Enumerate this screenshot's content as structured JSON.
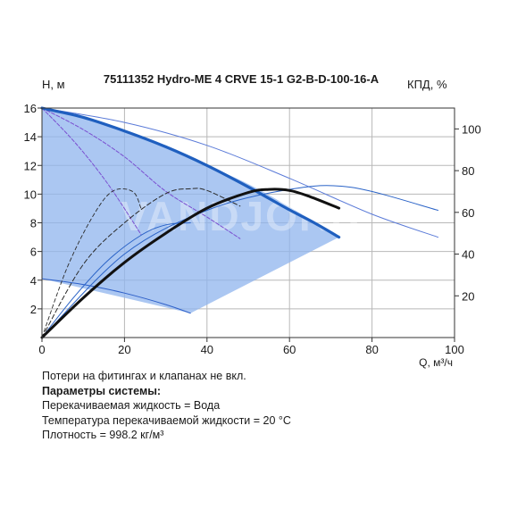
{
  "chart_data": {
    "type": "line",
    "title": "75111352 Hydro-ME 4 CRVE 15-1 G2-B-D-100-16-A",
    "xlabel": "Q, м³/ч",
    "ylabel_left": "H, м",
    "ylabel_right": "КПД, %",
    "xlim": [
      0,
      100
    ],
    "ylim_left": [
      0,
      16
    ],
    "ylim_right": [
      0,
      110
    ],
    "x_ticks": [
      "0",
      "20",
      "40",
      "60",
      "80",
      "100"
    ],
    "y_ticks_left": [
      "2",
      "4",
      "6",
      "8",
      "10",
      "12",
      "14",
      "16"
    ],
    "y_ticks_right": [
      "20",
      "40",
      "60",
      "80",
      "100"
    ],
    "grid": true,
    "watermark": "VANDJORD",
    "operating_area": {
      "top": [
        [
          0,
          16
        ],
        [
          18,
          14.6
        ],
        [
          35,
          12.6
        ],
        [
          50,
          10.7
        ],
        [
          63,
          8.6
        ],
        [
          72,
          7.0
        ]
      ],
      "bottom": [
        [
          36,
          1.7
        ],
        [
          0,
          4.1
        ]
      ]
    },
    "series": [
      {
        "role": "head-max",
        "points": [
          [
            0,
            16
          ],
          [
            10,
            15.35
          ],
          [
            20,
            14.4
          ],
          [
            30,
            13.3
          ],
          [
            40,
            12.0
          ],
          [
            50,
            10.5
          ],
          [
            60,
            8.9
          ],
          [
            66,
            8.0
          ],
          [
            72,
            7.0
          ]
        ]
      },
      {
        "role": "efficiency-max",
        "points": [
          [
            0,
            0
          ],
          [
            10,
            19
          ],
          [
            20,
            36
          ],
          [
            30,
            50
          ],
          [
            40,
            62
          ],
          [
            50,
            69.5
          ],
          [
            55,
            71
          ],
          [
            60,
            70.5
          ],
          [
            65,
            67.5
          ],
          [
            72,
            62
          ]
        ]
      },
      {
        "role": "head-curve-1",
        "points": [
          [
            0,
            16
          ],
          [
            20,
            15.0
          ],
          [
            40,
            13.4
          ],
          [
            60,
            11.1
          ],
          [
            80,
            8.6
          ],
          [
            96,
            7.0
          ]
        ]
      },
      {
        "role": "head-curve-2",
        "points": [
          [
            0,
            16
          ],
          [
            10,
            14.5
          ],
          [
            20,
            12.6
          ],
          [
            30,
            10.2
          ],
          [
            40,
            8.4
          ],
          [
            48,
            6.9
          ]
        ]
      },
      {
        "role": "head-curve-3",
        "points": [
          [
            0,
            16
          ],
          [
            8,
            13.6
          ],
          [
            16,
            10.7
          ],
          [
            24,
            7.2
          ]
        ]
      },
      {
        "role": "head-min",
        "points": [
          [
            0,
            4.1
          ],
          [
            10,
            3.7
          ],
          [
            20,
            3.1
          ],
          [
            30,
            2.3
          ],
          [
            36,
            1.7
          ]
        ]
      },
      {
        "role": "efficiency-1",
        "points": [
          [
            0,
            0
          ],
          [
            20,
            40
          ],
          [
            40,
            61
          ],
          [
            60,
            71
          ],
          [
            75,
            72
          ],
          [
            96,
            61
          ]
        ]
      },
      {
        "role": "efficiency-2",
        "points": [
          [
            0,
            0
          ],
          [
            10,
            35
          ],
          [
            20,
            55
          ],
          [
            30,
            69
          ],
          [
            36,
            71.3
          ],
          [
            40,
            70.5
          ],
          [
            48,
            63
          ]
        ]
      },
      {
        "role": "efficiency-3",
        "points": [
          [
            0,
            0
          ],
          [
            6,
            33
          ],
          [
            12,
            57
          ],
          [
            17,
            70
          ],
          [
            22,
            70
          ],
          [
            24,
            62
          ]
        ]
      },
      {
        "role": "efficiency-min",
        "points": [
          [
            0,
            0
          ],
          [
            8,
            20
          ],
          [
            16,
            37
          ],
          [
            24,
            49
          ],
          [
            30,
            54
          ],
          [
            36,
            55
          ]
        ]
      }
    ]
  },
  "notes": {
    "line1": "Потери на фитингах и клапанах не вкл.",
    "system_params_heading": "Параметры системы:",
    "fluid": "Перекачиваемая жидкость = Вода",
    "temperature": "Температура перекачиваемой жидкости = 20 °C",
    "density": "Плотность = 998.2 кг/м³"
  }
}
